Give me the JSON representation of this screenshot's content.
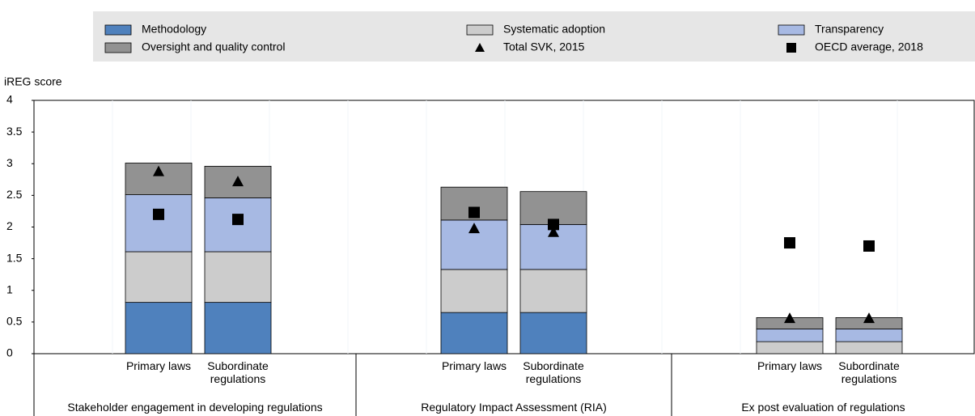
{
  "chart_data": {
    "type": "bar",
    "stacked": true,
    "y_label": "iREG score",
    "groups": [
      "Stakeholder engagement in developing regulations",
      "Regulatory Impact Assessment (RIA)",
      "Ex post evaluation of regulations"
    ],
    "categories": [
      "Primary laws",
      "Subordinate regulations",
      "Primary laws",
      "Subordinate regulations",
      "Primary laws",
      "Subordinate regulations"
    ],
    "series": [
      {
        "name": "Methodology",
        "color": "#4f81bd",
        "values": [
          0.81,
          0.81,
          0.65,
          0.65,
          0,
          0
        ]
      },
      {
        "name": "Systematic adoption",
        "color": "#cccccc",
        "values": [
          0.8,
          0.8,
          0.68,
          0.68,
          0.19,
          0.19
        ]
      },
      {
        "name": "Transparency",
        "color": "#a7b9e3",
        "values": [
          0.9,
          0.85,
          0.78,
          0.71,
          0.2,
          0.2
        ]
      },
      {
        "name": "Oversight and quality control",
        "color": "#929292",
        "values": [
          0.5,
          0.5,
          0.52,
          0.52,
          0.18,
          0.18
        ]
      }
    ],
    "markers": [
      {
        "name": "Total SVK, 2015",
        "shape": "triangle",
        "color": "#000000",
        "values": [
          2.88,
          2.72,
          1.98,
          1.92,
          0.56,
          0.56
        ]
      },
      {
        "name": "OECD average, 2018",
        "shape": "square",
        "color": "#000000",
        "values": [
          2.2,
          2.12,
          2.23,
          2.04,
          1.75,
          1.7
        ]
      }
    ],
    "ylim": [
      0,
      4
    ],
    "yticks": [
      0,
      0.5,
      1,
      1.5,
      2,
      2.5,
      3,
      3.5,
      4
    ]
  }
}
